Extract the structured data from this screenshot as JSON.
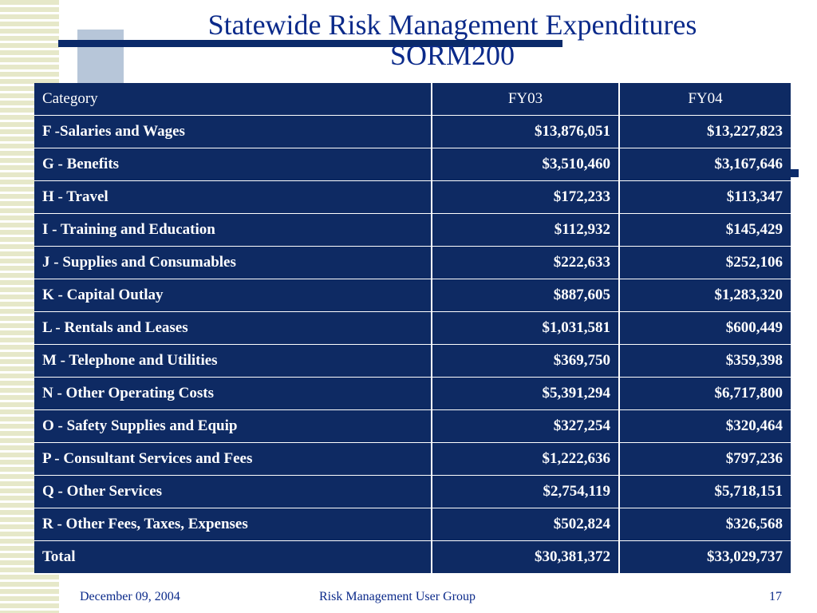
{
  "slide": {
    "title_line1": "Statewide Risk Management Expenditures",
    "title_line2": "SORM200"
  },
  "table": {
    "headers": [
      "Category",
      "FY03",
      "FY04"
    ],
    "rows": [
      {
        "category": "F -Salaries and Wages",
        "fy03": "$13,876,051",
        "fy04": "$13,227,823"
      },
      {
        "category": "G - Benefits",
        "fy03": "$3,510,460",
        "fy04": "$3,167,646"
      },
      {
        "category": "H - Travel",
        "fy03": "$172,233",
        "fy04": "$113,347"
      },
      {
        "category": "I - Training and Education",
        "fy03": "$112,932",
        "fy04": "$145,429"
      },
      {
        "category": "J - Supplies and Consumables",
        "fy03": "$222,633",
        "fy04": "$252,106"
      },
      {
        "category": "K - Capital Outlay",
        "fy03": "$887,605",
        "fy04": "$1,283,320"
      },
      {
        "category": "L - Rentals and Leases",
        "fy03": "$1,031,581",
        "fy04": "$600,449"
      },
      {
        "category": "M -  Telephone and Utilities",
        "fy03": "$369,750",
        "fy04": "$359,398"
      },
      {
        "category": "N - Other Operating Costs",
        "fy03": "$5,391,294",
        "fy04": "$6,717,800"
      },
      {
        "category": "O - Safety Supplies and Equip",
        "fy03": "$327,254",
        "fy04": "$320,464"
      },
      {
        "category": "P - Consultant Services and Fees",
        "fy03": "$1,222,636",
        "fy04": "$797,236"
      },
      {
        "category": "Q - Other Services",
        "fy03": "$2,754,119",
        "fy04": "$5,718,151"
      },
      {
        "category": "R - Other Fees, Taxes, Expenses",
        "fy03": "$502,824",
        "fy04": "$326,568"
      },
      {
        "category": "Total",
        "fy03": "$30,381,372",
        "fy04": "$33,029,737"
      }
    ]
  },
  "footer": {
    "date": "December 09, 2004",
    "group": "Risk Management User Group",
    "page": "17"
  },
  "colors": {
    "table_fill": "#0e2a63",
    "title_text": "#0b2a8a",
    "accent_bar": "#0b2a6a",
    "stripe": "#e6e8c9",
    "square": "#b7c6d9"
  }
}
